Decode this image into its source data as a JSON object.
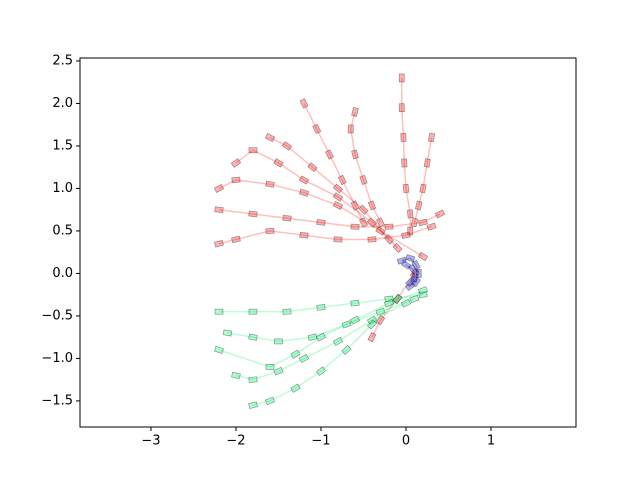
{
  "chart_data": {
    "type": "line",
    "xlim": [
      -3.835,
      2.0
    ],
    "ylim": [
      -1.807,
      2.535
    ],
    "xticks": [
      {
        "value": -3,
        "label": "−3"
      },
      {
        "value": -2,
        "label": "−2"
      },
      {
        "value": -1,
        "label": "−1"
      },
      0,
      1
    ],
    "yticks": [
      {
        "value": -1.5,
        "label": "−1.5"
      },
      {
        "value": -1.0,
        "label": "−1.0"
      },
      {
        "value": -0.5,
        "label": "−0.5"
      },
      {
        "value": 0.0,
        "label": "0.0"
      },
      0.5,
      {
        "value": 1.0,
        "label": "1.0"
      },
      1.5,
      {
        "value": 2.0,
        "label": "2.0"
      },
      2.5
    ],
    "grid": false,
    "series": [
      {
        "color": "#ff0000",
        "x": [
          0.05,
          0.05,
          0.0,
          -0.02,
          -0.03,
          -0.05,
          -0.05
        ],
        "y": [
          0.5,
          0.7,
          1.0,
          1.3,
          1.6,
          1.95,
          2.3
        ]
      },
      {
        "color": "#ff0000",
        "x": [
          0.1,
          0.15,
          0.2,
          0.25,
          0.3
        ],
        "y": [
          0.6,
          0.8,
          1.0,
          1.3,
          1.6
        ]
      },
      {
        "color": "#ff0000",
        "x": [
          -0.3,
          -0.4,
          -0.5,
          -0.6,
          -0.65,
          -0.6
        ],
        "y": [
          0.6,
          0.8,
          1.1,
          1.4,
          1.7,
          1.9
        ]
      },
      {
        "color": "#ff0000",
        "x": [
          -0.5,
          -0.6,
          -0.75,
          -0.9,
          -1.05,
          -1.2
        ],
        "y": [
          0.6,
          0.8,
          1.1,
          1.4,
          1.7,
          2.0
        ]
      },
      {
        "color": "#ff0000",
        "x": [
          0.4,
          0.2,
          -0.2,
          -0.6,
          -1.0,
          -1.4,
          -1.8,
          -2.2
        ],
        "y": [
          0.7,
          0.6,
          0.55,
          0.55,
          0.6,
          0.65,
          0.7,
          0.75
        ]
      },
      {
        "color": "#ff0000",
        "x": [
          0.3,
          0.0,
          -0.4,
          -0.8,
          -1.2,
          -1.6,
          -2.0,
          -2.2
        ],
        "y": [
          0.55,
          0.45,
          0.4,
          0.4,
          0.45,
          0.5,
          0.4,
          0.35
        ]
      },
      {
        "color": "#ff0000",
        "x": [
          -0.1,
          -0.4,
          -0.8,
          -1.2,
          -1.5,
          -1.8,
          -2.0
        ],
        "y": [
          0.3,
          0.6,
          0.9,
          1.1,
          1.3,
          1.45,
          1.3
        ]
      },
      {
        "color": "#ff0000",
        "x": [
          -0.2,
          -0.5,
          -0.8,
          -1.1,
          -1.4,
          -1.6
        ],
        "y": [
          0.4,
          0.75,
          1.0,
          1.25,
          1.5,
          1.6
        ]
      },
      {
        "color": "#ff0000",
        "x": [
          0.1,
          -0.1,
          -0.3,
          -0.4
        ],
        "y": [
          0.0,
          -0.3,
          -0.55,
          -0.75
        ]
      },
      {
        "color": "#ff0000",
        "x": [
          0.2,
          -0.3,
          -0.8,
          -1.2,
          -1.6,
          -2.0,
          -2.2
        ],
        "y": [
          0.2,
          0.5,
          0.8,
          0.95,
          1.05,
          1.1,
          1.0
        ]
      },
      {
        "color": "#00ee66",
        "x": [
          0.2,
          -0.2,
          -0.6,
          -1.0,
          -1.4,
          -1.8,
          -2.2
        ],
        "y": [
          -0.25,
          -0.3,
          -0.35,
          -0.4,
          -0.45,
          -0.45,
          -0.45
        ]
      },
      {
        "color": "#00ee66",
        "x": [
          0.1,
          -0.3,
          -0.7,
          -1.1,
          -1.5,
          -1.8,
          -2.1
        ],
        "y": [
          -0.3,
          -0.45,
          -0.6,
          -0.75,
          -0.8,
          -0.75,
          -0.7
        ]
      },
      {
        "color": "#00ee66",
        "x": [
          0.0,
          -0.4,
          -0.8,
          -1.2,
          -1.5,
          -1.8,
          -2.0
        ],
        "y": [
          -0.35,
          -0.55,
          -0.8,
          -1.0,
          -1.15,
          -1.25,
          -1.2
        ]
      },
      {
        "color": "#00ee66",
        "x": [
          -0.1,
          -0.4,
          -0.7,
          -1.0,
          -1.3,
          -1.6,
          -1.8
        ],
        "y": [
          -0.3,
          -0.6,
          -0.9,
          -1.15,
          -1.35,
          -1.5,
          -1.55
        ]
      },
      {
        "color": "#00ee66",
        "x": [
          0.2,
          -0.2,
          -0.6,
          -1.0,
          -1.3,
          -1.6,
          -2.2
        ],
        "y": [
          -0.2,
          -0.35,
          -0.55,
          -0.75,
          -0.95,
          -1.1,
          -0.9
        ]
      },
      {
        "color": "#0000cc",
        "x": [
          -0.05,
          0.05,
          0.12,
          0.15,
          0.12,
          0.05
        ],
        "y": [
          0.15,
          0.18,
          0.1,
          0.0,
          -0.1,
          -0.15
        ]
      },
      {
        "color": "#0000cc",
        "x": [
          0.0,
          0.08,
          0.1,
          0.05
        ],
        "y": [
          0.1,
          0.05,
          -0.05,
          -0.1
        ]
      }
    ]
  }
}
